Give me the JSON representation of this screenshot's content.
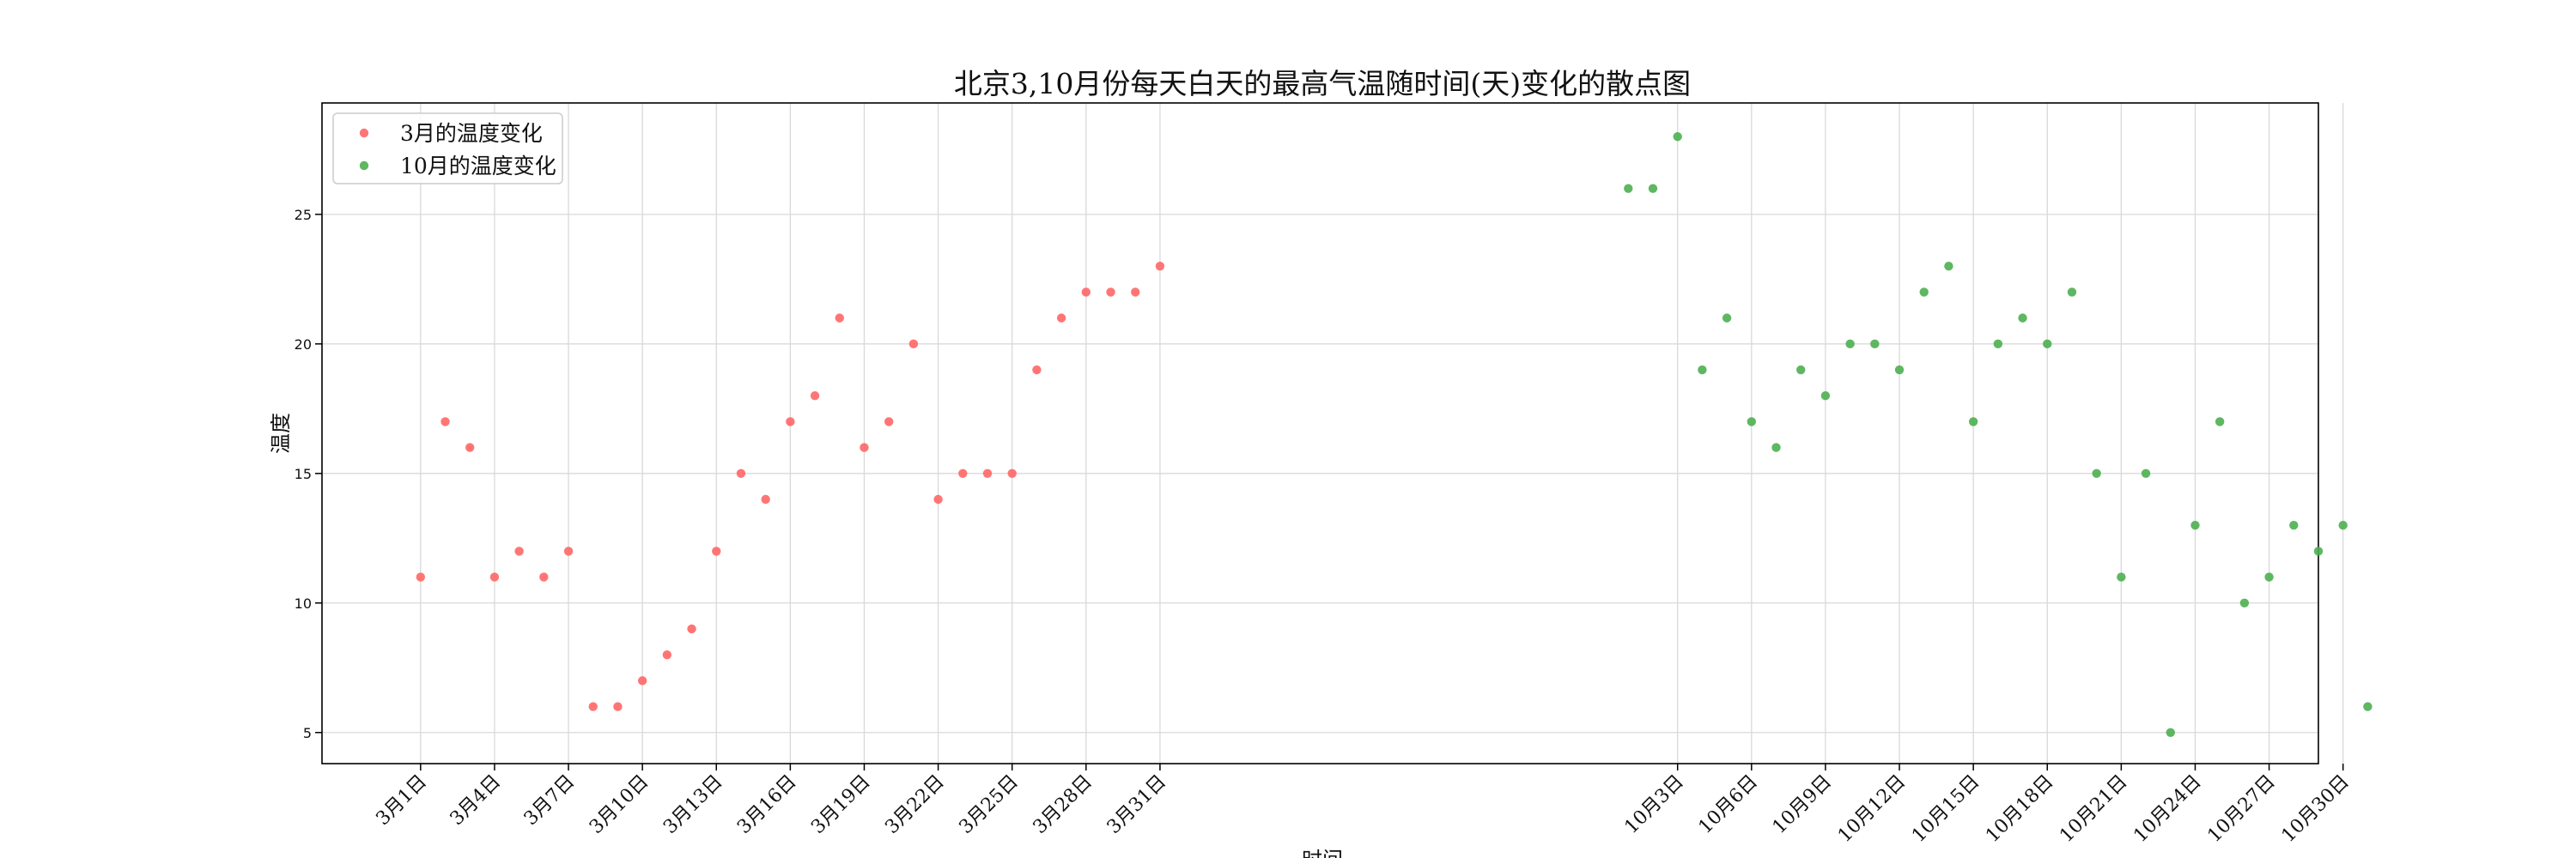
{
  "chart_data": {
    "type": "scatter",
    "title": "北京3,10月份每天白天的最高气温随时间(天)变化的散点图",
    "xlabel": "时间",
    "ylabel": "温度",
    "grid": true,
    "legend_position": "top-left",
    "x_range": [
      -3,
      78
    ],
    "ylim": [
      3.8,
      29.3
    ],
    "y_ticks": [
      5,
      10,
      15,
      20,
      25
    ],
    "x_ticks": [
      {
        "x": 1,
        "label": "3月1日"
      },
      {
        "x": 4,
        "label": "3月4日"
      },
      {
        "x": 7,
        "label": "3月7日"
      },
      {
        "x": 10,
        "label": "3月10日"
      },
      {
        "x": 13,
        "label": "3月13日"
      },
      {
        "x": 16,
        "label": "3月16日"
      },
      {
        "x": 19,
        "label": "3月19日"
      },
      {
        "x": 22,
        "label": "3月22日"
      },
      {
        "x": 25,
        "label": "3月25日"
      },
      {
        "x": 28,
        "label": "3月28日"
      },
      {
        "x": 31,
        "label": "3月31日"
      },
      {
        "x": 52,
        "label": "10月3日"
      },
      {
        "x": 55,
        "label": "10月6日"
      },
      {
        "x": 58,
        "label": "10月9日"
      },
      {
        "x": 61,
        "label": "10月12日"
      },
      {
        "x": 64,
        "label": "10月15日"
      },
      {
        "x": 67,
        "label": "10月18日"
      },
      {
        "x": 70,
        "label": "10月21日"
      },
      {
        "x": 73,
        "label": "10月24日"
      },
      {
        "x": 76,
        "label": "10月27日"
      },
      {
        "x": 79,
        "label": "10月30日"
      }
    ],
    "series": [
      {
        "name": "3月的温度变化",
        "color": "#ff6666",
        "x": [
          1,
          2,
          3,
          4,
          5,
          6,
          7,
          8,
          9,
          10,
          11,
          12,
          13,
          14,
          15,
          16,
          17,
          18,
          19,
          20,
          21,
          22,
          23,
          24,
          25,
          26,
          27,
          28,
          29,
          30,
          31
        ],
        "y": [
          11,
          17,
          16,
          11,
          12,
          11,
          12,
          6,
          6,
          7,
          8,
          9,
          12,
          15,
          14,
          17,
          18,
          21,
          16,
          17,
          20,
          14,
          15,
          15,
          15,
          19,
          21,
          22,
          22,
          22,
          23
        ]
      },
      {
        "name": "10月的温度变化",
        "color": "#4caf50",
        "x": [
          50,
          51,
          52,
          53,
          54,
          55,
          56,
          57,
          58,
          59,
          60,
          61,
          62,
          63,
          64,
          65,
          66,
          67,
          68,
          69,
          70,
          71,
          72,
          73,
          74,
          75,
          76,
          77,
          78,
          79,
          80
        ],
        "y": [
          26,
          26,
          28,
          19,
          21,
          17,
          16,
          19,
          18,
          20,
          20,
          19,
          22,
          23,
          17,
          20,
          21,
          20,
          22,
          15,
          11,
          15,
          5,
          13,
          17,
          10,
          11,
          13,
          12,
          13,
          6
        ]
      }
    ]
  }
}
